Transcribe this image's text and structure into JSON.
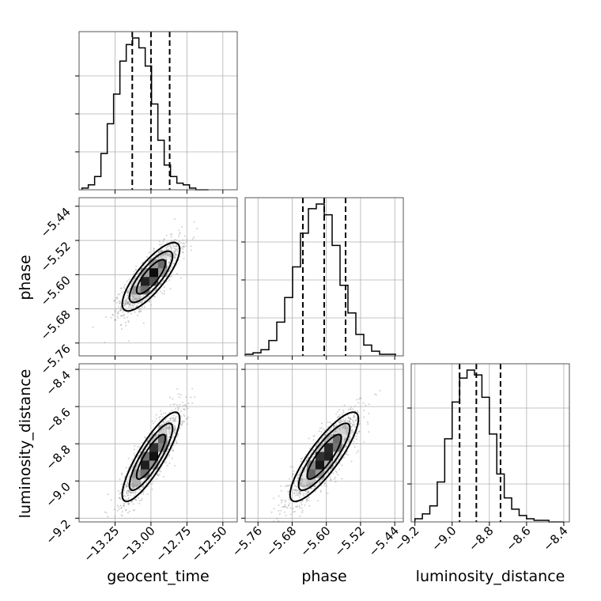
{
  "chart_data": {
    "type": "corner",
    "parameters": [
      "geocent_time",
      "phase",
      "luminosity_distance"
    ],
    "ranges": {
      "geocent_time": [
        -13.5,
        -12.4
      ],
      "phase": [
        -5.79,
        -5.42
      ],
      "luminosity_distance": [
        -9.22,
        -8.37
      ]
    },
    "ticks": {
      "geocent_time": [
        -13.25,
        -13.0,
        -12.75,
        -12.5
      ],
      "phase": [
        -5.76,
        -5.68,
        -5.6,
        -5.52,
        -5.44
      ],
      "luminosity_distance": [
        -9.2,
        -9.0,
        -8.8,
        -8.6,
        -8.4
      ]
    },
    "tick_labels": {
      "geocent_time": [
        "−13.25",
        "−13.00",
        "−12.75",
        "−12.50"
      ],
      "phase": [
        "−5.76",
        "−5.68",
        "−5.60",
        "−5.52",
        "−5.44"
      ],
      "luminosity_distance": [
        "−9.2",
        "−9.0",
        "−8.8",
        "−8.6",
        "−8.4"
      ]
    },
    "quantiles": {
      "geocent_time": [
        -13.13,
        -13.0,
        -12.87
      ],
      "phase": [
        -5.655,
        -5.605,
        -5.555
      ],
      "luminosity_distance": [
        -8.96,
        -8.87,
        -8.74
      ]
    },
    "histograms": {
      "geocent_time": {
        "edges_start": -13.48,
        "bin_width": 0.044,
        "counts": [
          1,
          3,
          8,
          22,
          40,
          58,
          78,
          88,
          92,
          86,
          75,
          52,
          30,
          15,
          8,
          4,
          3,
          1,
          0,
          0
        ]
      },
      "phase": {
        "edges_start": -5.79,
        "bin_width": 0.0185,
        "counts": [
          1,
          2,
          4,
          10,
          22,
          38,
          58,
          80,
          96,
          99,
          92,
          72,
          46,
          28,
          14,
          7,
          3,
          1,
          1
        ]
      },
      "luminosity_distance": {
        "edges_start": -9.2,
        "bin_width": 0.04,
        "counts": [
          2,
          5,
          10,
          25,
          52,
          75,
          90,
          95,
          92,
          78,
          55,
          30,
          15,
          8,
          4,
          2,
          1,
          1,
          0,
          0
        ]
      }
    },
    "joint_2d": [
      {
        "x": "geocent_time",
        "y": "phase",
        "mean": [
          -13.0,
          -5.605
        ],
        "std": [
          0.1,
          0.04
        ],
        "correlation": 0.8
      },
      {
        "x": "geocent_time",
        "y": "luminosity_distance",
        "mean": [
          -13.0,
          -8.87
        ],
        "std": [
          0.1,
          0.12
        ],
        "correlation": 0.85
      },
      {
        "x": "phase",
        "y": "luminosity_distance",
        "mean": [
          -5.605,
          -8.87
        ],
        "std": [
          0.04,
          0.12
        ],
        "correlation": 0.85
      }
    ],
    "contour_levels_sigma": [
      1,
      1.5,
      2
    ],
    "grid": true
  }
}
